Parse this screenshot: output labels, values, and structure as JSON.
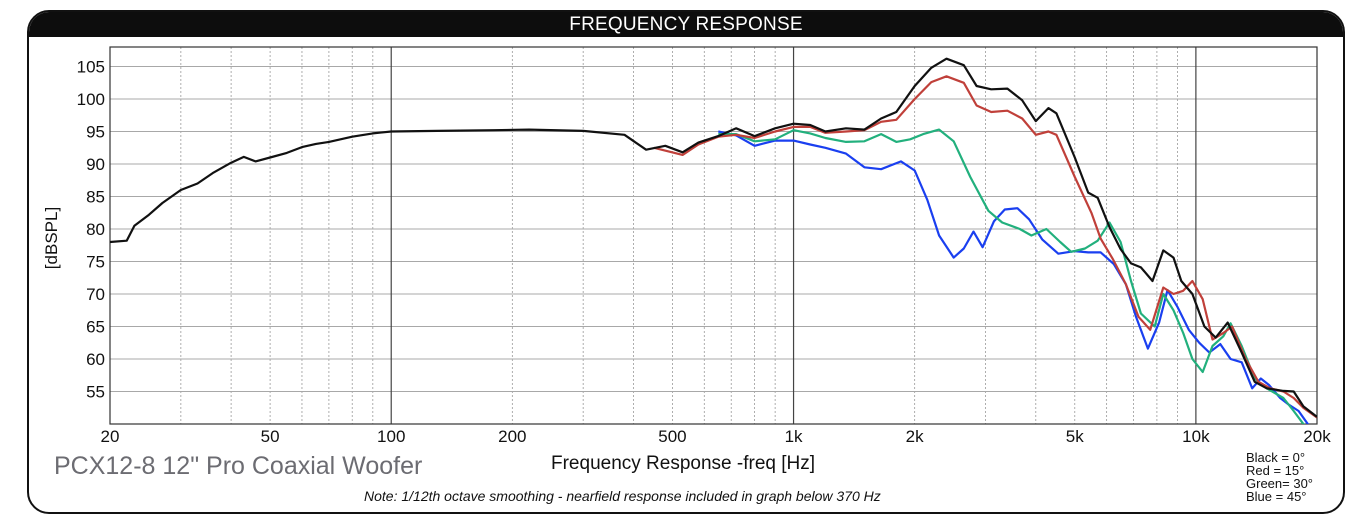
{
  "title": "FREQUENCY RESPONSE",
  "product_name": "PCX12-8 12\" Pro Coaxial Woofer",
  "note": "Note: 1/12th octave smoothing - nearfield response included in graph below 370 Hz",
  "legend": [
    {
      "label": "Black =  0°",
      "color": "#111111"
    },
    {
      "label": "Red   = 15°",
      "color": "#c0403a"
    },
    {
      "label": "Green= 30°",
      "color": "#22b07d"
    },
    {
      "label": "Blue  = 45°",
      "color": "#1a3ff0"
    }
  ],
  "chart_data": {
    "type": "line",
    "title": "FREQUENCY RESPONSE",
    "xlabel": "Frequency Response -freq [Hz]",
    "ylabel": "[dBSPL]",
    "x_scale": "log",
    "xlim": [
      20,
      20000
    ],
    "ylim": [
      50,
      108
    ],
    "grid": true,
    "x_ticks": [
      {
        "value": 20,
        "label": "20"
      },
      {
        "value": 50,
        "label": "50"
      },
      {
        "value": 100,
        "label": "100"
      },
      {
        "value": 200,
        "label": "200"
      },
      {
        "value": 500,
        "label": "500"
      },
      {
        "value": 1000,
        "label": "1k"
      },
      {
        "value": 2000,
        "label": "2k"
      },
      {
        "value": 5000,
        "label": "5k"
      },
      {
        "value": 10000,
        "label": "10k"
      },
      {
        "value": 20000,
        "label": "20k"
      }
    ],
    "y_ticks": [
      55,
      60,
      65,
      70,
      75,
      80,
      85,
      90,
      95,
      100,
      105
    ],
    "series": [
      {
        "name": "Black = 0°",
        "color": "#111111",
        "points": [
          [
            20,
            78
          ],
          [
            22,
            78.2
          ],
          [
            23,
            80.5
          ],
          [
            25,
            82.2
          ],
          [
            27,
            84
          ],
          [
            30,
            86
          ],
          [
            33,
            87
          ],
          [
            36,
            88.6
          ],
          [
            40,
            90.2
          ],
          [
            43,
            91.1
          ],
          [
            46,
            90.4
          ],
          [
            50,
            91
          ],
          [
            55,
            91.7
          ],
          [
            60,
            92.6
          ],
          [
            65,
            93.1
          ],
          [
            70,
            93.4
          ],
          [
            80,
            94.2
          ],
          [
            90,
            94.7
          ],
          [
            100,
            95
          ],
          [
            130,
            95.1
          ],
          [
            180,
            95.2
          ],
          [
            220,
            95.3
          ],
          [
            300,
            95.1
          ],
          [
            380,
            94.5
          ],
          [
            430,
            92.2
          ],
          [
            480,
            92.8
          ],
          [
            530,
            91.8
          ],
          [
            580,
            93.3
          ],
          [
            650,
            94.3
          ],
          [
            720,
            95.5
          ],
          [
            800,
            94.3
          ],
          [
            900,
            95.5
          ],
          [
            1000,
            96.2
          ],
          [
            1100,
            96
          ],
          [
            1200,
            95
          ],
          [
            1350,
            95.5
          ],
          [
            1500,
            95.3
          ],
          [
            1650,
            97
          ],
          [
            1800,
            98
          ],
          [
            2000,
            102
          ],
          [
            2200,
            104.8
          ],
          [
            2400,
            106.2
          ],
          [
            2650,
            105.2
          ],
          [
            2850,
            102
          ],
          [
            3100,
            101.5
          ],
          [
            3400,
            101.6
          ],
          [
            3700,
            99.8
          ],
          [
            4000,
            96.6
          ],
          [
            4300,
            98.6
          ],
          [
            4500,
            97.8
          ],
          [
            5000,
            91
          ],
          [
            5400,
            85.6
          ],
          [
            5700,
            84.8
          ],
          [
            6100,
            80.3
          ],
          [
            6500,
            76.9
          ],
          [
            6900,
            74.7
          ],
          [
            7300,
            74.1
          ],
          [
            7800,
            72
          ],
          [
            8300,
            76.7
          ],
          [
            8800,
            75.6
          ],
          [
            9200,
            72
          ],
          [
            9800,
            70
          ],
          [
            10500,
            65
          ],
          [
            11200,
            63.3
          ],
          [
            12000,
            65.6
          ],
          [
            13000,
            61
          ],
          [
            14000,
            56.5
          ],
          [
            15000,
            55.5
          ],
          [
            16500,
            55.1
          ],
          [
            17500,
            55
          ],
          [
            18500,
            52.7
          ],
          [
            20000,
            51.1
          ]
        ]
      },
      {
        "name": "Red = 15°",
        "color": "#c0403a",
        "points": [
          [
            450,
            92.5
          ],
          [
            530,
            91.4
          ],
          [
            580,
            93
          ],
          [
            650,
            94.2
          ],
          [
            720,
            94.5
          ],
          [
            800,
            94
          ],
          [
            900,
            95
          ],
          [
            1000,
            95.7
          ],
          [
            1100,
            95.7
          ],
          [
            1200,
            94.8
          ],
          [
            1350,
            95
          ],
          [
            1500,
            95.2
          ],
          [
            1650,
            96.5
          ],
          [
            1800,
            96.8
          ],
          [
            2000,
            100
          ],
          [
            2200,
            102.6
          ],
          [
            2400,
            103.5
          ],
          [
            2650,
            102.5
          ],
          [
            2850,
            99
          ],
          [
            3100,
            98
          ],
          [
            3400,
            98.2
          ],
          [
            3700,
            97
          ],
          [
            4000,
            94.5
          ],
          [
            4300,
            95
          ],
          [
            4500,
            94.5
          ],
          [
            5000,
            88
          ],
          [
            5500,
            82.5
          ],
          [
            5800,
            78.5
          ],
          [
            6200,
            75.5
          ],
          [
            6700,
            71.5
          ],
          [
            7200,
            66.5
          ],
          [
            7700,
            64.5
          ],
          [
            8300,
            71
          ],
          [
            8800,
            70
          ],
          [
            9300,
            70.5
          ],
          [
            9800,
            72
          ],
          [
            10400,
            69.2
          ],
          [
            11000,
            63
          ],
          [
            11700,
            64
          ],
          [
            12300,
            65
          ],
          [
            13300,
            60
          ],
          [
            14300,
            56.5
          ],
          [
            15300,
            55.5
          ],
          [
            16500,
            55
          ],
          [
            17500,
            54
          ],
          [
            18500,
            52.5
          ],
          [
            20000,
            51
          ]
        ]
      },
      {
        "name": "Green = 30°",
        "color": "#22b07d",
        "points": [
          [
            650,
            94.6
          ],
          [
            720,
            94.6
          ],
          [
            800,
            93.5
          ],
          [
            900,
            93.8
          ],
          [
            1000,
            95.2
          ],
          [
            1100,
            94.7
          ],
          [
            1200,
            94
          ],
          [
            1350,
            93.4
          ],
          [
            1500,
            93.5
          ],
          [
            1650,
            94.6
          ],
          [
            1800,
            93.4
          ],
          [
            1950,
            93.8
          ],
          [
            2100,
            94.6
          ],
          [
            2300,
            95.3
          ],
          [
            2500,
            93.5
          ],
          [
            2750,
            88
          ],
          [
            3050,
            82.8
          ],
          [
            3300,
            81
          ],
          [
            3650,
            80
          ],
          [
            3900,
            79
          ],
          [
            4250,
            80
          ],
          [
            4600,
            78
          ],
          [
            4900,
            76.5
          ],
          [
            5300,
            77
          ],
          [
            5700,
            78.2
          ],
          [
            6100,
            81
          ],
          [
            6500,
            78
          ],
          [
            6900,
            72
          ],
          [
            7300,
            67
          ],
          [
            7900,
            65
          ],
          [
            8300,
            70
          ],
          [
            8800,
            67.5
          ],
          [
            9300,
            64
          ],
          [
            9800,
            60
          ],
          [
            10400,
            58
          ],
          [
            11000,
            62
          ],
          [
            11700,
            63.5
          ],
          [
            12200,
            65.5
          ],
          [
            13000,
            62
          ],
          [
            14000,
            57
          ],
          [
            15000,
            55.5
          ],
          [
            16500,
            54
          ],
          [
            17500,
            52
          ],
          [
            18500,
            50
          ],
          [
            20000,
            48.5
          ]
        ]
      },
      {
        "name": "Blue = 45°",
        "color": "#1a3ff0",
        "points": [
          [
            650,
            95
          ],
          [
            720,
            94.4
          ],
          [
            800,
            92.8
          ],
          [
            900,
            93.6
          ],
          [
            1000,
            93.6
          ],
          [
            1100,
            93
          ],
          [
            1200,
            92.5
          ],
          [
            1350,
            91.6
          ],
          [
            1500,
            89.5
          ],
          [
            1650,
            89.2
          ],
          [
            1850,
            90.4
          ],
          [
            2000,
            89
          ],
          [
            2150,
            84.5
          ],
          [
            2300,
            79
          ],
          [
            2500,
            75.6
          ],
          [
            2650,
            77
          ],
          [
            2800,
            79.6
          ],
          [
            2950,
            77.2
          ],
          [
            3150,
            81.2
          ],
          [
            3350,
            83
          ],
          [
            3600,
            83.2
          ],
          [
            3850,
            81.5
          ],
          [
            4150,
            78.4
          ],
          [
            4550,
            76.2
          ],
          [
            5000,
            76.6
          ],
          [
            5400,
            76.4
          ],
          [
            5800,
            76.4
          ],
          [
            6250,
            74.6
          ],
          [
            6700,
            71.5
          ],
          [
            7100,
            66.5
          ],
          [
            7600,
            61.6
          ],
          [
            8100,
            65.6
          ],
          [
            8500,
            70.6
          ],
          [
            9000,
            68
          ],
          [
            9600,
            64.5
          ],
          [
            10200,
            62.5
          ],
          [
            10800,
            61
          ],
          [
            11500,
            62.3
          ],
          [
            12200,
            60
          ],
          [
            13000,
            59.5
          ],
          [
            13800,
            55.5
          ],
          [
            14500,
            57
          ],
          [
            15200,
            56
          ],
          [
            16200,
            54
          ],
          [
            17000,
            53
          ],
          [
            18000,
            52
          ],
          [
            20000,
            48
          ]
        ]
      }
    ]
  }
}
